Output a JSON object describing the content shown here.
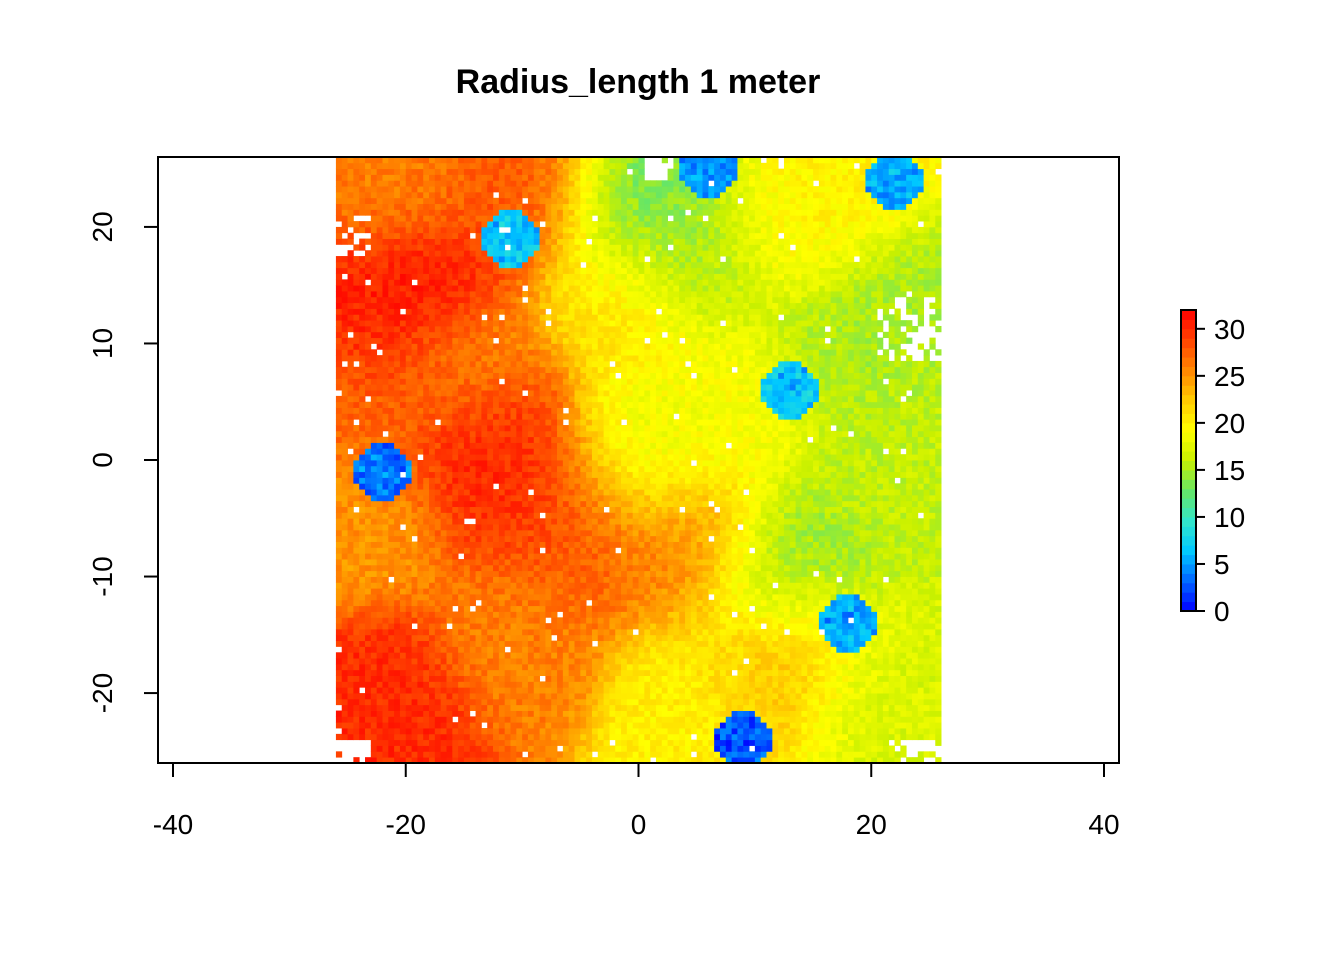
{
  "chart_data": {
    "type": "heatmap",
    "title": "Radius_length 1 meter",
    "xlabel": "",
    "ylabel": "",
    "xlim": [
      -40,
      40
    ],
    "ylim": [
      -26,
      26
    ],
    "x_ticks": [
      -40,
      -20,
      0,
      20,
      40
    ],
    "y_ticks": [
      -20,
      -10,
      0,
      10,
      20
    ],
    "x_tick_labels": [
      "-40",
      "-20",
      "0",
      "20",
      "40"
    ],
    "y_tick_labels": [
      "-20",
      "-10",
      "0",
      "10",
      "20"
    ],
    "data_extent_x": [
      -26,
      26
    ],
    "data_extent_y": [
      -26,
      26
    ],
    "grid": false,
    "legend": {
      "placement": "right",
      "type": "colorbar",
      "range": [
        0,
        32
      ],
      "ticks": [
        0,
        5,
        10,
        15,
        20,
        25,
        30
      ],
      "tick_labels": [
        "0",
        "5",
        "10",
        "15",
        "20",
        "25",
        "30"
      ]
    },
    "colormap": [
      "#0000ff",
      "#0066ff",
      "#00c8ff",
      "#33e6cc",
      "#66e666",
      "#c8f000",
      "#ffff00",
      "#ffcc00",
      "#ff8800",
      "#ff4400",
      "#ff0000"
    ],
    "hotspots": [
      {
        "x": -19,
        "y": 14,
        "value": 32
      },
      {
        "x": -23,
        "y": 11,
        "value": 30
      },
      {
        "x": -14,
        "y": 3,
        "value": 31
      },
      {
        "x": -10,
        "y": -2,
        "value": 30
      },
      {
        "x": -5,
        "y": -6,
        "value": 28
      },
      {
        "x": -22,
        "y": -21,
        "value": 30
      },
      {
        "x": -21,
        "y": 23,
        "value": 26
      },
      {
        "x": -10,
        "y": 23,
        "value": 28
      },
      {
        "x": -10,
        "y": -15,
        "value": 26
      },
      {
        "x": 4,
        "y": -8,
        "value": 26
      },
      {
        "x": -24,
        "y": 4,
        "value": 27
      },
      {
        "x": -24,
        "y": -5,
        "value": 25
      },
      {
        "x": 0,
        "y": 0,
        "value": 18
      },
      {
        "x": 12,
        "y": 20,
        "value": 20
      },
      {
        "x": -1,
        "y": 14,
        "value": 21
      },
      {
        "x": 8,
        "y": 5,
        "value": 19
      },
      {
        "x": 22,
        "y": 0,
        "value": 16
      },
      {
        "x": 5,
        "y": 18,
        "value": 14
      },
      {
        "x": 18,
        "y": 10,
        "value": 15
      },
      {
        "x": 12,
        "y": -10,
        "value": 14
      },
      {
        "x": 20,
        "y": -20,
        "value": 17
      },
      {
        "x": 5,
        "y": -20,
        "value": 20
      },
      {
        "x": 12,
        "y": -17,
        "value": 24
      },
      {
        "x": -15,
        "y": 8,
        "value": 24
      },
      {
        "x": 0,
        "y": 22,
        "value": 13
      }
    ],
    "low_value_patches": [
      {
        "x": 13,
        "y": 6,
        "value": 5
      },
      {
        "x": 9,
        "y": -24,
        "value": 1
      },
      {
        "x": -22,
        "y": -1,
        "value": 2
      },
      {
        "x": -11,
        "y": 19,
        "value": 5
      },
      {
        "x": 18,
        "y": -14,
        "value": 4
      },
      {
        "x": 22,
        "y": 24,
        "value": 4
      },
      {
        "x": 6,
        "y": 25,
        "value": 3
      }
    ]
  }
}
